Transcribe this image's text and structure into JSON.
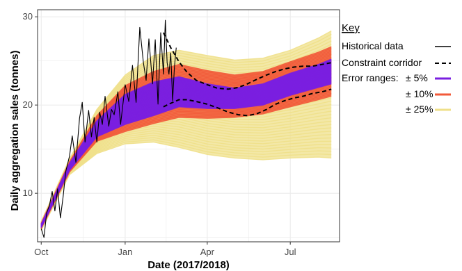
{
  "chart_data": {
    "type": "line",
    "xlabel": "Date (2017/2018)",
    "ylabel": "Daily aggregation sales (tonnes)",
    "ylim": [
      4.5,
      30.8
    ],
    "xlim": [
      "2017-09-27",
      "2018-08-24"
    ],
    "grid": true,
    "legend_position": "right",
    "x_ticks": [
      {
        "date": "2017-10-01",
        "label": "Oct"
      },
      {
        "date": "2018-01-01",
        "label": "Jan"
      },
      {
        "date": "2018-04-01",
        "label": "Apr"
      },
      {
        "date": "2018-07-01",
        "label": "Jul"
      }
    ],
    "y_ticks": [
      10,
      20,
      30
    ],
    "legend": {
      "title": "Key",
      "historical": "Historical data",
      "corridor": "Constraint corridor",
      "error_prefix": "Error ranges:",
      "pm5": "± 5%",
      "pm10": "± 10%",
      "pm25": "± 25%"
    },
    "colors": {
      "historical": "#000000",
      "corridor": "#000000",
      "pm5": "#7a1fe0",
      "pm10": "#f25a3a",
      "pm25": "#efe08a",
      "grid": "#ebebeb",
      "frame": "#333333"
    },
    "series": [
      {
        "name": "Historical data",
        "x": [
          "2017-10-01",
          "2017-10-04",
          "2017-10-07",
          "2017-10-10",
          "2017-10-13",
          "2017-10-16",
          "2017-10-19",
          "2017-10-22",
          "2017-10-25",
          "2017-10-28",
          "2017-11-01",
          "2017-11-04",
          "2017-11-08",
          "2017-11-12",
          "2017-11-15",
          "2017-11-18",
          "2017-11-22",
          "2017-11-25",
          "2017-11-28",
          "2017-12-01",
          "2017-12-04",
          "2017-12-07",
          "2017-12-10",
          "2017-12-14",
          "2017-12-17",
          "2017-12-20",
          "2017-12-24",
          "2017-12-27",
          "2018-01-01",
          "2018-01-05",
          "2018-01-09",
          "2018-01-13",
          "2018-01-17",
          "2018-01-21",
          "2018-01-24",
          "2018-01-27",
          "2018-01-31",
          "2018-02-03",
          "2018-02-06",
          "2018-02-09",
          "2018-02-12",
          "2018-02-14",
          "2018-02-16",
          "2018-02-18",
          "2018-02-20",
          "2018-02-22",
          "2018-02-24",
          "2018-02-26"
        ],
        "y": [
          6.0,
          5.0,
          7.8,
          8.6,
          10.2,
          8.0,
          10.5,
          7.2,
          9.6,
          12.5,
          14.2,
          16.5,
          13.5,
          18.5,
          20.3,
          15.8,
          19.4,
          16.4,
          18.6,
          15.8,
          19.2,
          17.8,
          21.0,
          17.6,
          19.5,
          18.9,
          21.5,
          17.8,
          22.3,
          20.4,
          24.5,
          20.3,
          28.8,
          24.8,
          22.8,
          27.5,
          22.4,
          27.4,
          20.1,
          28.2,
          23.5,
          29.6,
          24.8,
          23.5,
          25.9,
          20.5,
          24.3,
          26.5
        ]
      },
      {
        "name": "Constraint corridor",
        "x": [
          "2018-02-12",
          "2018-02-20",
          "2018-03-01",
          "2018-03-10",
          "2018-03-20",
          "2018-04-01",
          "2018-04-12",
          "2018-04-24",
          "2018-05-05",
          "2018-05-15",
          "2018-05-25",
          "2018-06-05",
          "2018-06-15",
          "2018-06-25",
          "2018-07-05",
          "2018-07-15",
          "2018-07-25",
          "2018-08-05",
          "2018-08-15"
        ],
        "upper": [
          28.2,
          26.5,
          24.9,
          23.7,
          22.8,
          22.3,
          21.9,
          21.8,
          22.0,
          22.4,
          22.9,
          23.4,
          23.8,
          24.1,
          24.3,
          24.4,
          24.4,
          24.6,
          24.8
        ],
        "lower": [
          19.8,
          20.2,
          20.6,
          20.6,
          20.4,
          20.1,
          19.7,
          19.2,
          18.9,
          18.8,
          19.0,
          19.5,
          20.1,
          20.5,
          20.8,
          21.0,
          21.3,
          21.5,
          21.8
        ]
      },
      {
        "name": "± 5%",
        "x": [
          "2017-10-01",
          "2017-11-01",
          "2017-12-01",
          "2018-01-01",
          "2018-02-01",
          "2018-03-01",
          "2018-04-01",
          "2018-05-01",
          "2018-06-01",
          "2018-07-01",
          "2018-08-01",
          "2018-08-15"
        ],
        "lower": [
          6.1,
          12.6,
          16.4,
          17.8,
          18.8,
          19.8,
          19.6,
          19.6,
          20.0,
          21.1,
          22.0,
          22.4
        ],
        "upper": [
          6.5,
          13.4,
          18.2,
          21.2,
          22.6,
          23.2,
          22.4,
          21.9,
          22.4,
          23.6,
          24.6,
          25.2
        ]
      },
      {
        "name": "± 10%",
        "x": [
          "2017-10-01",
          "2017-11-01",
          "2017-12-01",
          "2018-01-01",
          "2018-02-01",
          "2018-03-01",
          "2018-04-01",
          "2018-05-01",
          "2018-06-01",
          "2018-07-01",
          "2018-08-01",
          "2018-08-15"
        ],
        "lower": [
          6.0,
          12.4,
          15.9,
          17.0,
          17.9,
          18.6,
          18.5,
          18.6,
          19.0,
          19.8,
          20.6,
          21.0
        ],
        "upper": [
          6.6,
          13.6,
          18.8,
          22.2,
          23.8,
          24.6,
          23.9,
          23.4,
          23.8,
          24.9,
          26.0,
          26.6
        ]
      },
      {
        "name": "± 25%",
        "x": [
          "2017-10-01",
          "2017-11-01",
          "2017-12-01",
          "2018-01-01",
          "2018-02-01",
          "2018-03-01",
          "2018-04-01",
          "2018-05-01",
          "2018-06-01",
          "2018-07-01",
          "2018-08-01",
          "2018-08-15"
        ],
        "lower": [
          5.8,
          12.1,
          14.5,
          15.6,
          15.8,
          15.2,
          14.4,
          14.0,
          13.8,
          14.0,
          14.1,
          14.0
        ],
        "upper": [
          6.8,
          13.9,
          19.5,
          23.4,
          25.6,
          26.2,
          25.6,
          25.1,
          25.3,
          26.2,
          27.6,
          28.4
        ]
      }
    ]
  }
}
